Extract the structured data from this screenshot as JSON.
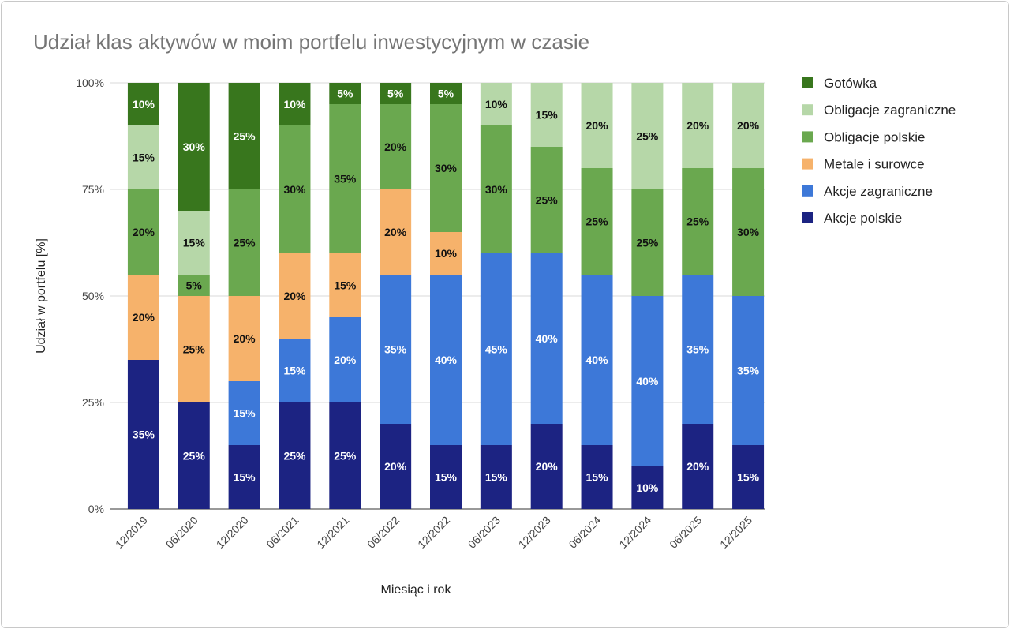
{
  "chart_data": {
    "type": "bar",
    "stacked": true,
    "title": "Udział klas aktywów w moim portfelu inwestycyjnym w czasie",
    "xlabel": "Miesiąc i rok",
    "ylabel": "Udział w portfelu [%]",
    "ylim": [
      0,
      100
    ],
    "yticks": [
      "0%",
      "25%",
      "50%",
      "75%",
      "100%"
    ],
    "grid": true,
    "legend_position": "right",
    "categories": [
      "12/2019",
      "06/2020",
      "12/2020",
      "06/2021",
      "12/2021",
      "06/2022",
      "12/2022",
      "06/2023",
      "12/2023",
      "06/2024",
      "12/2024",
      "06/2025",
      "12/2025"
    ],
    "series": [
      {
        "name": "Akcje polskie",
        "color": "#1c2382",
        "label_color": "#ffffff",
        "values": [
          35,
          25,
          15,
          25,
          25,
          20,
          15,
          15,
          20,
          15,
          10,
          20,
          15
        ]
      },
      {
        "name": "Akcje zagraniczne",
        "color": "#3d78d8",
        "label_color": "#ffffff",
        "values": [
          0,
          0,
          15,
          15,
          20,
          35,
          40,
          45,
          40,
          40,
          40,
          35,
          35
        ]
      },
      {
        "name": "Metale i surowce",
        "color": "#f6b26b",
        "label_color": "#111111",
        "values": [
          20,
          25,
          20,
          20,
          15,
          20,
          10,
          0,
          0,
          0,
          0,
          0,
          0
        ]
      },
      {
        "name": "Obligacje polskie",
        "color": "#6aa84f",
        "label_color": "#111111",
        "values": [
          20,
          5,
          25,
          30,
          35,
          20,
          30,
          30,
          25,
          25,
          25,
          25,
          30
        ]
      },
      {
        "name": "Obligacje zagraniczne",
        "color": "#b6d7a8",
        "label_color": "#111111",
        "values": [
          15,
          15,
          0,
          0,
          0,
          0,
          0,
          10,
          15,
          20,
          25,
          20,
          20
        ]
      },
      {
        "name": "Gotówka",
        "color": "#38761d",
        "label_color": "#ffffff",
        "values": [
          10,
          30,
          25,
          10,
          5,
          5,
          5,
          0,
          0,
          0,
          0,
          0,
          0
        ]
      }
    ]
  }
}
